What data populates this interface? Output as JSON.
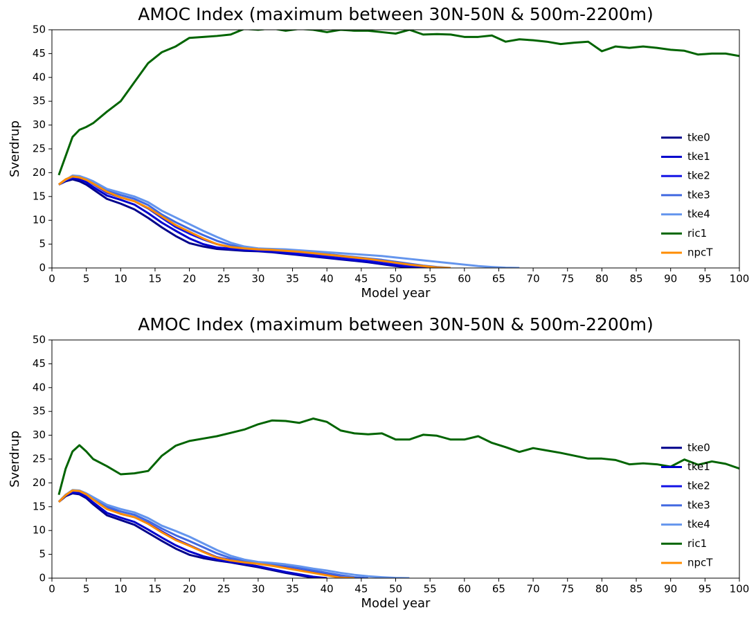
{
  "chart_data": [
    {
      "type": "line",
      "title": "AMOC Index (maximum between 30N-50N & 500m-2200m)",
      "xlabel": "Model year",
      "ylabel": "Sverdrup",
      "xlim": [
        0,
        100
      ],
      "ylim": [
        0,
        50
      ],
      "xticks": [
        0,
        5,
        10,
        15,
        20,
        25,
        30,
        35,
        40,
        45,
        50,
        55,
        60,
        65,
        70,
        75,
        80,
        85,
        90,
        95,
        100
      ],
      "yticks": [
        0,
        5,
        10,
        15,
        20,
        25,
        30,
        35,
        40,
        45,
        50
      ],
      "legend": "lower right",
      "x": [
        1,
        2,
        3,
        4,
        5,
        6,
        8,
        10,
        12,
        14,
        16,
        18,
        20,
        22,
        24,
        26,
        28,
        30,
        32,
        34,
        36,
        38,
        40,
        42,
        44,
        46,
        48,
        50,
        52,
        54,
        56,
        58,
        60,
        62,
        64,
        66,
        68,
        70,
        72,
        74,
        76,
        78,
        80,
        82,
        84,
        86,
        88,
        90,
        92,
        94,
        96,
        98,
        100
      ],
      "series": [
        {
          "name": "tke0",
          "color": "#00008b",
          "values": [
            17.5,
            18.2,
            18.6,
            18.2,
            17.5,
            16.5,
            14.5,
            13.5,
            12.3,
            10.5,
            8.5,
            6.7,
            5.2,
            4.5,
            4.0,
            3.8,
            3.6,
            3.5,
            3.3,
            3.0,
            2.7,
            2.4,
            2.1,
            1.8,
            1.5,
            1.2,
            0.8,
            0.4,
            0.1,
            0,
            null,
            null,
            null,
            null,
            null,
            null,
            null,
            null,
            null,
            null,
            null,
            null,
            null,
            null,
            null,
            null,
            null,
            null,
            null,
            null,
            null,
            null,
            null
          ]
        },
        {
          "name": "tke1",
          "color": "#0000cd",
          "values": [
            17.5,
            18.4,
            18.9,
            18.6,
            18.0,
            17.0,
            15.2,
            14.3,
            13.3,
            11.5,
            9.5,
            7.8,
            6.2,
            5.0,
            4.3,
            4.0,
            3.8,
            3.6,
            3.4,
            3.1,
            2.8,
            2.5,
            2.2,
            1.9,
            1.6,
            1.3,
            0.9,
            0.5,
            0.2,
            0,
            null,
            null,
            null,
            null,
            null,
            null,
            null,
            null,
            null,
            null,
            null,
            null,
            null,
            null,
            null,
            null,
            null,
            null,
            null,
            null,
            null,
            null,
            null
          ]
        },
        {
          "name": "tke2",
          "color": "#1414e6",
          "values": [
            17.5,
            18.5,
            19.0,
            19.0,
            18.5,
            17.6,
            15.8,
            14.8,
            14.0,
            12.5,
            10.5,
            8.6,
            7.2,
            6.0,
            5.0,
            4.3,
            4.0,
            3.8,
            3.7,
            3.5,
            3.2,
            2.9,
            2.6,
            2.3,
            2.0,
            1.7,
            1.3,
            0.9,
            0.5,
            0.2,
            0,
            null,
            null,
            null,
            null,
            null,
            null,
            null,
            null,
            null,
            null,
            null,
            null,
            null,
            null,
            null,
            null,
            null,
            null,
            null,
            null,
            null,
            null
          ]
        },
        {
          "name": "tke3",
          "color": "#4169e1",
          "values": [
            17.5,
            18.6,
            19.2,
            19.1,
            18.6,
            17.9,
            16.2,
            15.3,
            14.5,
            13.2,
            11.2,
            9.6,
            8.2,
            6.9,
            5.7,
            4.8,
            4.3,
            4.0,
            3.9,
            3.7,
            3.4,
            3.2,
            2.9,
            2.6,
            2.3,
            2.0,
            1.7,
            1.3,
            0.9,
            0.5,
            0.2,
            0,
            null,
            null,
            null,
            null,
            null,
            null,
            null,
            null,
            null,
            null,
            null,
            null,
            null,
            null,
            null,
            null,
            null,
            null,
            null,
            null,
            null
          ]
        },
        {
          "name": "tke4",
          "color": "#6495ed",
          "values": [
            17.5,
            18.5,
            19.4,
            19.3,
            18.8,
            18.2,
            16.6,
            15.8,
            15.0,
            13.8,
            12.0,
            10.6,
            9.2,
            7.8,
            6.5,
            5.3,
            4.5,
            4.1,
            4.0,
            3.9,
            3.7,
            3.5,
            3.3,
            3.1,
            2.9,
            2.7,
            2.5,
            2.2,
            1.9,
            1.6,
            1.3,
            1.0,
            0.7,
            0.4,
            0.2,
            0.05,
            0,
            null,
            null,
            null,
            null,
            null,
            null,
            null,
            null,
            null,
            null,
            null,
            null,
            null,
            null,
            null,
            null
          ]
        },
        {
          "name": "ric1",
          "color": "#006400",
          "values": [
            19.5,
            23.5,
            27.5,
            29,
            29.6,
            30.4,
            32.8,
            35,
            39,
            43,
            45.3,
            46.5,
            48.3,
            48.5,
            48.7,
            49,
            50.2,
            50,
            50.3,
            49.8,
            50.2,
            50,
            49.5,
            50,
            49.8,
            49.8,
            49.5,
            49.2,
            50,
            49,
            49.1,
            49,
            48.5,
            48.5,
            48.8,
            47.5,
            48,
            47.8,
            47.5,
            47,
            47.3,
            47.5,
            45.5,
            46.5,
            46.2,
            46.5,
            46.2,
            45.8,
            45.6,
            44.8,
            45,
            45,
            44.5
          ]
        },
        {
          "name": "npcT",
          "color": "#ff8c00",
          "values": [
            17.5,
            18.6,
            19.2,
            19.0,
            18.5,
            17.7,
            16.0,
            14.8,
            14.0,
            12.6,
            10.8,
            9.0,
            7.6,
            6.2,
            5.0,
            4.4,
            4.1,
            3.9,
            3.8,
            3.6,
            3.4,
            3.1,
            2.8,
            2.5,
            2.2,
            1.9,
            1.5,
            1.1,
            0.7,
            0.4,
            0.1,
            0,
            null,
            null,
            null,
            null,
            null,
            null,
            null,
            null,
            null,
            null,
            null,
            null,
            null,
            null,
            null,
            null,
            null,
            null,
            null,
            null,
            null
          ]
        }
      ]
    },
    {
      "type": "line",
      "title": "AMOC Index (maximum between 30N-50N & 500m-2200m)",
      "xlabel": "Model year",
      "ylabel": "Sverdrup",
      "xlim": [
        0,
        100
      ],
      "ylim": [
        0,
        50
      ],
      "xticks": [
        0,
        5,
        10,
        15,
        20,
        25,
        30,
        35,
        40,
        45,
        50,
        55,
        60,
        65,
        70,
        75,
        80,
        85,
        90,
        95,
        100
      ],
      "yticks": [
        0,
        5,
        10,
        15,
        20,
        25,
        30,
        35,
        40,
        45,
        50
      ],
      "legend": "lower right",
      "x": [
        1,
        2,
        3,
        4,
        5,
        6,
        8,
        10,
        12,
        14,
        16,
        18,
        20,
        22,
        24,
        26,
        28,
        30,
        32,
        34,
        36,
        38,
        40,
        42,
        44,
        46,
        48,
        50,
        52,
        54,
        56,
        58,
        60,
        62,
        64,
        66,
        68,
        70,
        72,
        74,
        76,
        78,
        80,
        82,
        84,
        86,
        88,
        90,
        92,
        94,
        96,
        98,
        100
      ],
      "series": [
        {
          "name": "tke0",
          "color": "#00008b",
          "values": [
            16,
            17.2,
            17.8,
            17.6,
            16.8,
            15.5,
            13.2,
            12.2,
            11.2,
            9.5,
            7.8,
            6.2,
            4.9,
            4.2,
            3.7,
            3.3,
            2.8,
            2.3,
            1.7,
            1.1,
            0.6,
            0.1,
            0,
            null,
            null,
            null,
            null,
            null,
            null,
            null,
            null,
            null,
            null,
            null,
            null,
            null,
            null,
            null,
            null,
            null,
            null,
            null,
            null,
            null,
            null,
            null,
            null,
            null,
            null,
            null,
            null,
            null,
            null
          ]
        },
        {
          "name": "tke1",
          "color": "#0000cd",
          "values": [
            16,
            17.4,
            18.0,
            17.8,
            17.1,
            15.9,
            13.7,
            12.7,
            11.8,
            10.2,
            8.5,
            6.9,
            5.6,
            4.6,
            3.9,
            3.4,
            3.0,
            2.5,
            1.9,
            1.3,
            0.8,
            0.3,
            0,
            null,
            null,
            null,
            null,
            null,
            null,
            null,
            null,
            null,
            null,
            null,
            null,
            null,
            null,
            null,
            null,
            null,
            null,
            null,
            null,
            null,
            null,
            null,
            null,
            null,
            null,
            null,
            null,
            null,
            null
          ]
        },
        {
          "name": "tke2",
          "color": "#1414e6",
          "values": [
            16,
            17.5,
            18.3,
            18.2,
            17.6,
            16.6,
            14.7,
            13.5,
            12.8,
            11.5,
            9.8,
            8.2,
            6.9,
            5.6,
            4.4,
            3.8,
            3.4,
            3.1,
            2.7,
            2.2,
            1.7,
            1.2,
            0.7,
            0.2,
            0,
            null,
            null,
            null,
            null,
            null,
            null,
            null,
            null,
            null,
            null,
            null,
            null,
            null,
            null,
            null,
            null,
            null,
            null,
            null,
            null,
            null,
            null,
            null,
            null,
            null,
            null,
            null,
            null
          ]
        },
        {
          "name": "tke3",
          "color": "#4169e1",
          "values": [
            16,
            17.5,
            18.4,
            18.3,
            17.7,
            16.8,
            15.0,
            14.0,
            13.3,
            12.0,
            10.4,
            9.0,
            7.8,
            6.5,
            5.2,
            4.2,
            3.6,
            3.3,
            3.0,
            2.6,
            2.1,
            1.6,
            1.1,
            0.6,
            0.2,
            0,
            null,
            null,
            null,
            null,
            null,
            null,
            null,
            null,
            null,
            null,
            null,
            null,
            null,
            null,
            null,
            null,
            null,
            null,
            null,
            null,
            null,
            null,
            null,
            null,
            null,
            null,
            null
          ]
        },
        {
          "name": "tke4",
          "color": "#6495ed",
          "values": [
            16,
            17.5,
            18.5,
            18.4,
            17.8,
            17.0,
            15.4,
            14.5,
            13.8,
            12.6,
            11.0,
            9.9,
            8.7,
            7.3,
            5.9,
            4.7,
            3.9,
            3.4,
            3.2,
            2.9,
            2.5,
            2.0,
            1.6,
            1.1,
            0.7,
            0.4,
            0.2,
            0.05,
            0,
            null,
            null,
            null,
            null,
            null,
            null,
            null,
            null,
            null,
            null,
            null,
            null,
            null,
            null,
            null,
            null,
            null,
            null,
            null,
            null,
            null,
            null,
            null,
            null
          ]
        },
        {
          "name": "ric1",
          "color": "#006400",
          "values": [
            17.5,
            23,
            26.6,
            27.9,
            26.6,
            25,
            23.5,
            21.8,
            22,
            22.5,
            25.7,
            27.8,
            28.8,
            29.3,
            29.8,
            30.5,
            31.2,
            32.3,
            33.1,
            33,
            32.6,
            33.5,
            32.8,
            31,
            30.4,
            30.2,
            30.4,
            29.1,
            29.1,
            30.1,
            29.9,
            29.1,
            29.1,
            29.8,
            28.4,
            27.5,
            26.5,
            27.3,
            26.8,
            26.3,
            25.7,
            25.1,
            25.1,
            24.8,
            23.9,
            24.1,
            23.9,
            23.4,
            24.9,
            23.8,
            24.5,
            24,
            23
          ]
        },
        {
          "name": "npcT",
          "color": "#ff8c00",
          "values": [
            16,
            17.4,
            18.4,
            18.3,
            17.6,
            16.5,
            14.5,
            13.5,
            12.8,
            11.4,
            9.6,
            8.0,
            6.8,
            5.5,
            4.3,
            3.7,
            3.3,
            3.0,
            2.6,
            2.1,
            1.6,
            1.1,
            0.6,
            0.1,
            0,
            null,
            null,
            null,
            null,
            null,
            null,
            null,
            null,
            null,
            null,
            null,
            null,
            null,
            null,
            null,
            null,
            null,
            null,
            null,
            null,
            null,
            null,
            null,
            null,
            null,
            null,
            null,
            null
          ]
        }
      ]
    }
  ]
}
